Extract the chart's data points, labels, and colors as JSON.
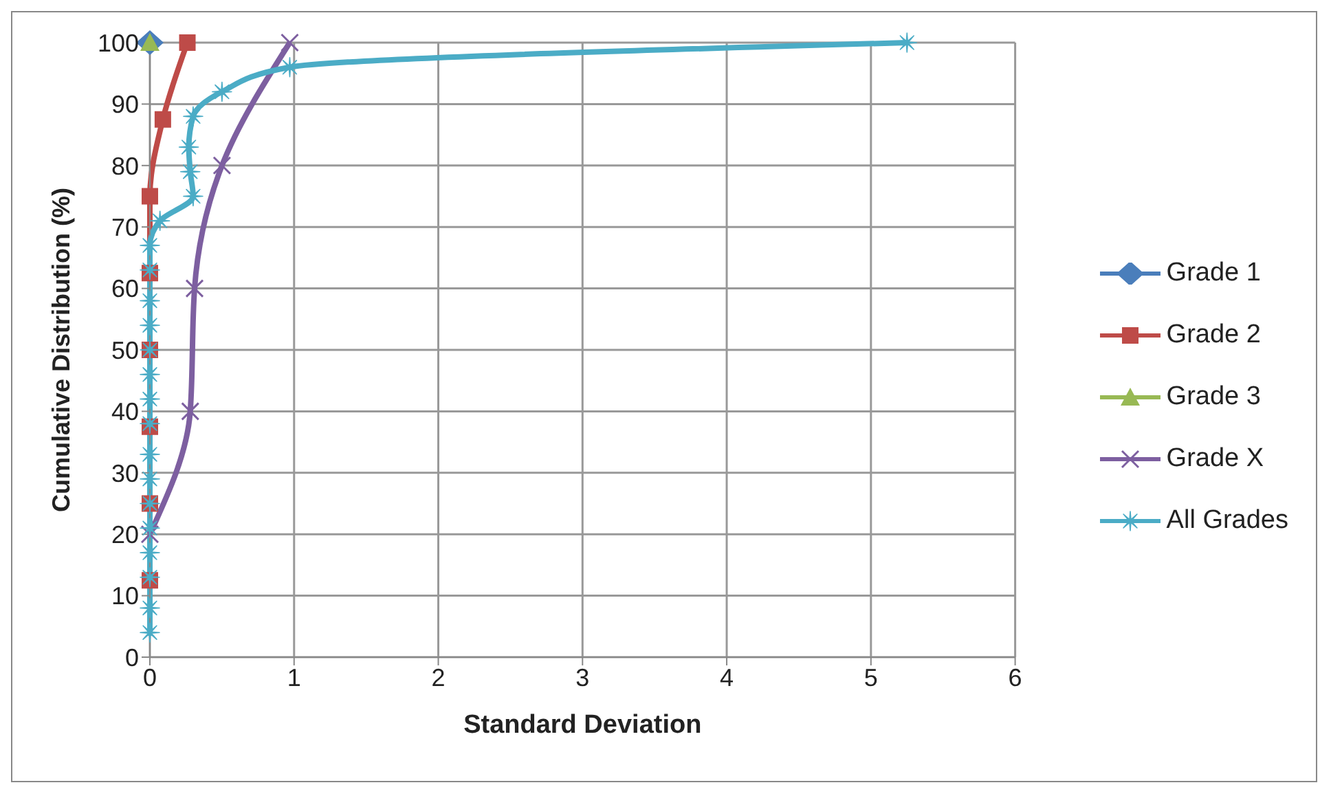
{
  "chart_data": {
    "type": "line",
    "xlabel": "Standard Deviation",
    "ylabel": "Cumulative Distribution (%)",
    "xlim": [
      0,
      6
    ],
    "xticks": [
      0,
      1,
      2,
      3,
      4,
      5,
      6
    ],
    "ylim": [
      0,
      100
    ],
    "yticks": [
      0,
      10,
      20,
      30,
      40,
      50,
      60,
      70,
      80,
      90,
      100
    ],
    "grid": true,
    "legend": "right",
    "series": [
      {
        "name": "Grade 1",
        "color": "#4a7ebb",
        "marker": "diamond",
        "x": [
          0
        ],
        "values": [
          100
        ]
      },
      {
        "name": "Grade 2",
        "color": "#be4b48",
        "marker": "square",
        "x": [
          0,
          0,
          0,
          0,
          0,
          0,
          0.09,
          0.26
        ],
        "values": [
          12.5,
          25,
          37.5,
          50,
          62.5,
          75,
          87.5,
          100
        ]
      },
      {
        "name": "Grade 3",
        "color": "#98b954",
        "marker": "triangle",
        "x": [
          0
        ],
        "values": [
          100
        ]
      },
      {
        "name": "Grade X",
        "color": "#7d5fa0",
        "marker": "cross",
        "x": [
          0,
          0.28,
          0.31,
          0.5,
          0.97
        ],
        "values": [
          20,
          40,
          60,
          80,
          100
        ]
      },
      {
        "name": "All Grades",
        "color": "#4bacc6",
        "marker": "star",
        "x": [
          0,
          0,
          0,
          0,
          0,
          0,
          0,
          0,
          0,
          0,
          0,
          0,
          0,
          0,
          0,
          0,
          0.07,
          0.3,
          0.28,
          0.27,
          0.3,
          0.5,
          0.97,
          5.25
        ],
        "values": [
          4,
          8,
          13,
          17,
          21,
          25,
          29,
          33,
          38,
          42,
          46,
          50,
          54,
          58,
          63,
          67,
          71,
          75,
          79,
          83,
          88,
          92,
          96,
          100
        ]
      }
    ]
  }
}
